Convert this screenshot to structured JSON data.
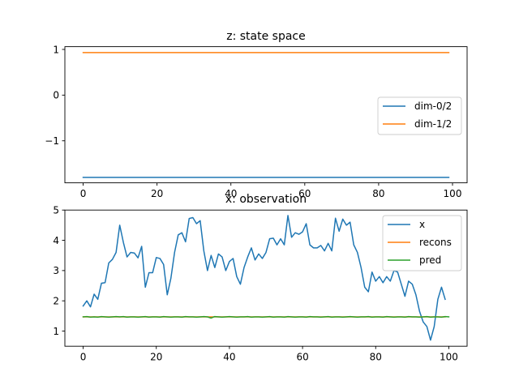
{
  "chart_data": [
    {
      "type": "line",
      "title": "z: state space",
      "xlabel": "",
      "ylabel": "",
      "xlim": [
        -4.95,
        103.95
      ],
      "ylim": [
        -1.92,
        1.06
      ],
      "xticks": [
        0,
        20,
        40,
        60,
        80,
        100
      ],
      "yticks": [
        1,
        0,
        -1
      ],
      "ytick_labels": [
        "1",
        "0",
        "−1"
      ],
      "legend": {
        "placement": "center-right"
      },
      "x": {
        "start": 0,
        "end": 99
      },
      "series": [
        {
          "name": "dim-0/2",
          "color": "#1f77b4",
          "constant": -1.8
        },
        {
          "name": "dim-1/2",
          "color": "#ff7f0e",
          "constant": 0.93
        }
      ]
    },
    {
      "type": "line",
      "title": "x: observation",
      "xlabel": "",
      "ylabel": "",
      "xlim": [
        -5,
        105
      ],
      "ylim": [
        0.5,
        5.0
      ],
      "xticks": [
        0,
        20,
        40,
        60,
        80,
        100
      ],
      "yticks": [
        5,
        4,
        3,
        2,
        1
      ],
      "legend": {
        "placement": "top-right"
      },
      "series": [
        {
          "name": "x",
          "color": "#1f77b4",
          "values": [
            1.83,
            2.0,
            1.8,
            2.22,
            2.05,
            2.58,
            2.6,
            3.25,
            3.37,
            3.6,
            4.5,
            3.93,
            3.45,
            3.6,
            3.58,
            3.42,
            3.8,
            2.45,
            2.93,
            2.93,
            3.43,
            3.4,
            3.2,
            2.2,
            2.75,
            3.6,
            4.18,
            4.25,
            3.95,
            4.72,
            4.75,
            4.55,
            4.65,
            3.65,
            3.0,
            3.5,
            3.1,
            3.55,
            3.45,
            3.0,
            3.3,
            3.4,
            2.8,
            2.55,
            3.1,
            3.45,
            3.75,
            3.35,
            3.55,
            3.4,
            3.6,
            4.05,
            4.07,
            3.85,
            4.05,
            3.85,
            4.82,
            4.1,
            4.25,
            4.2,
            4.28,
            4.55,
            3.85,
            3.75,
            3.75,
            3.83,
            3.65,
            3.9,
            3.65,
            4.73,
            4.3,
            4.7,
            4.5,
            4.6,
            3.85,
            3.6,
            3.1,
            2.45,
            2.3,
            2.95,
            2.65,
            2.8,
            2.6,
            2.8,
            2.65,
            3.0,
            2.95,
            2.55,
            2.15,
            2.65,
            2.55,
            2.2,
            1.65,
            1.3,
            1.15,
            0.7,
            1.15,
            2.05,
            2.45,
            2.05
          ]
        },
        {
          "name": "recons",
          "color": "#ff7f0e",
          "values": [
            1.47,
            1.47,
            1.47,
            1.47,
            1.47,
            1.47,
            1.47,
            1.47,
            1.47,
            1.47,
            1.47,
            1.47,
            1.47,
            1.47,
            1.47,
            1.47,
            1.47,
            1.47,
            1.47,
            1.47,
            1.47,
            1.47,
            1.47,
            1.47,
            1.47,
            1.47,
            1.47,
            1.47,
            1.47,
            1.47,
            1.47,
            1.47,
            1.47,
            1.47,
            1.47,
            1.47,
            1.47,
            1.47,
            1.47,
            1.47,
            1.47,
            1.47,
            1.47,
            1.47,
            1.47,
            1.47,
            1.47,
            1.47,
            1.47,
            1.47,
            1.47,
            1.47,
            1.47,
            1.47,
            1.47,
            1.47,
            1.47,
            1.47,
            1.47,
            1.47,
            1.47,
            1.47,
            1.47,
            1.47,
            1.47,
            1.47,
            1.47,
            1.47,
            1.47,
            1.47,
            1.47,
            1.47,
            1.47,
            1.47,
            1.47,
            1.47,
            1.47,
            1.47,
            1.47,
            1.47,
            1.47,
            1.47,
            1.47,
            1.47,
            1.47,
            1.47,
            1.47,
            1.47,
            1.47,
            1.47,
            1.47,
            1.47,
            1.47,
            1.47,
            1.47,
            1.47,
            1.47,
            1.47,
            1.47,
            1.47
          ]
        },
        {
          "name": "pred",
          "color": "#2ca02c",
          "values": [
            1.47,
            1.48,
            1.46,
            1.47,
            1.46,
            1.48,
            1.47,
            1.46,
            1.47,
            1.48,
            1.47,
            1.48,
            1.46,
            1.47,
            1.47,
            1.46,
            1.47,
            1.48,
            1.46,
            1.47,
            1.47,
            1.46,
            1.48,
            1.47,
            1.46,
            1.47,
            1.47,
            1.46,
            1.48,
            1.47,
            1.47,
            1.46,
            1.47,
            1.48,
            1.47,
            1.43,
            1.48,
            1.47,
            1.46,
            1.47,
            1.48,
            1.47,
            1.46,
            1.47,
            1.47,
            1.48,
            1.46,
            1.47,
            1.47,
            1.46,
            1.47,
            1.48,
            1.46,
            1.47,
            1.47,
            1.46,
            1.48,
            1.47,
            1.46,
            1.47,
            1.47,
            1.46,
            1.48,
            1.47,
            1.47,
            1.46,
            1.47,
            1.48,
            1.46,
            1.47,
            1.47,
            1.46,
            1.47,
            1.48,
            1.47,
            1.46,
            1.47,
            1.47,
            1.48,
            1.46,
            1.47,
            1.47,
            1.46,
            1.48,
            1.47,
            1.46,
            1.47,
            1.47,
            1.46,
            1.48,
            1.47,
            1.47,
            1.46,
            1.47,
            1.48,
            1.46,
            1.47,
            1.47,
            1.46,
            1.48,
            1.47
          ]
        }
      ]
    }
  ]
}
